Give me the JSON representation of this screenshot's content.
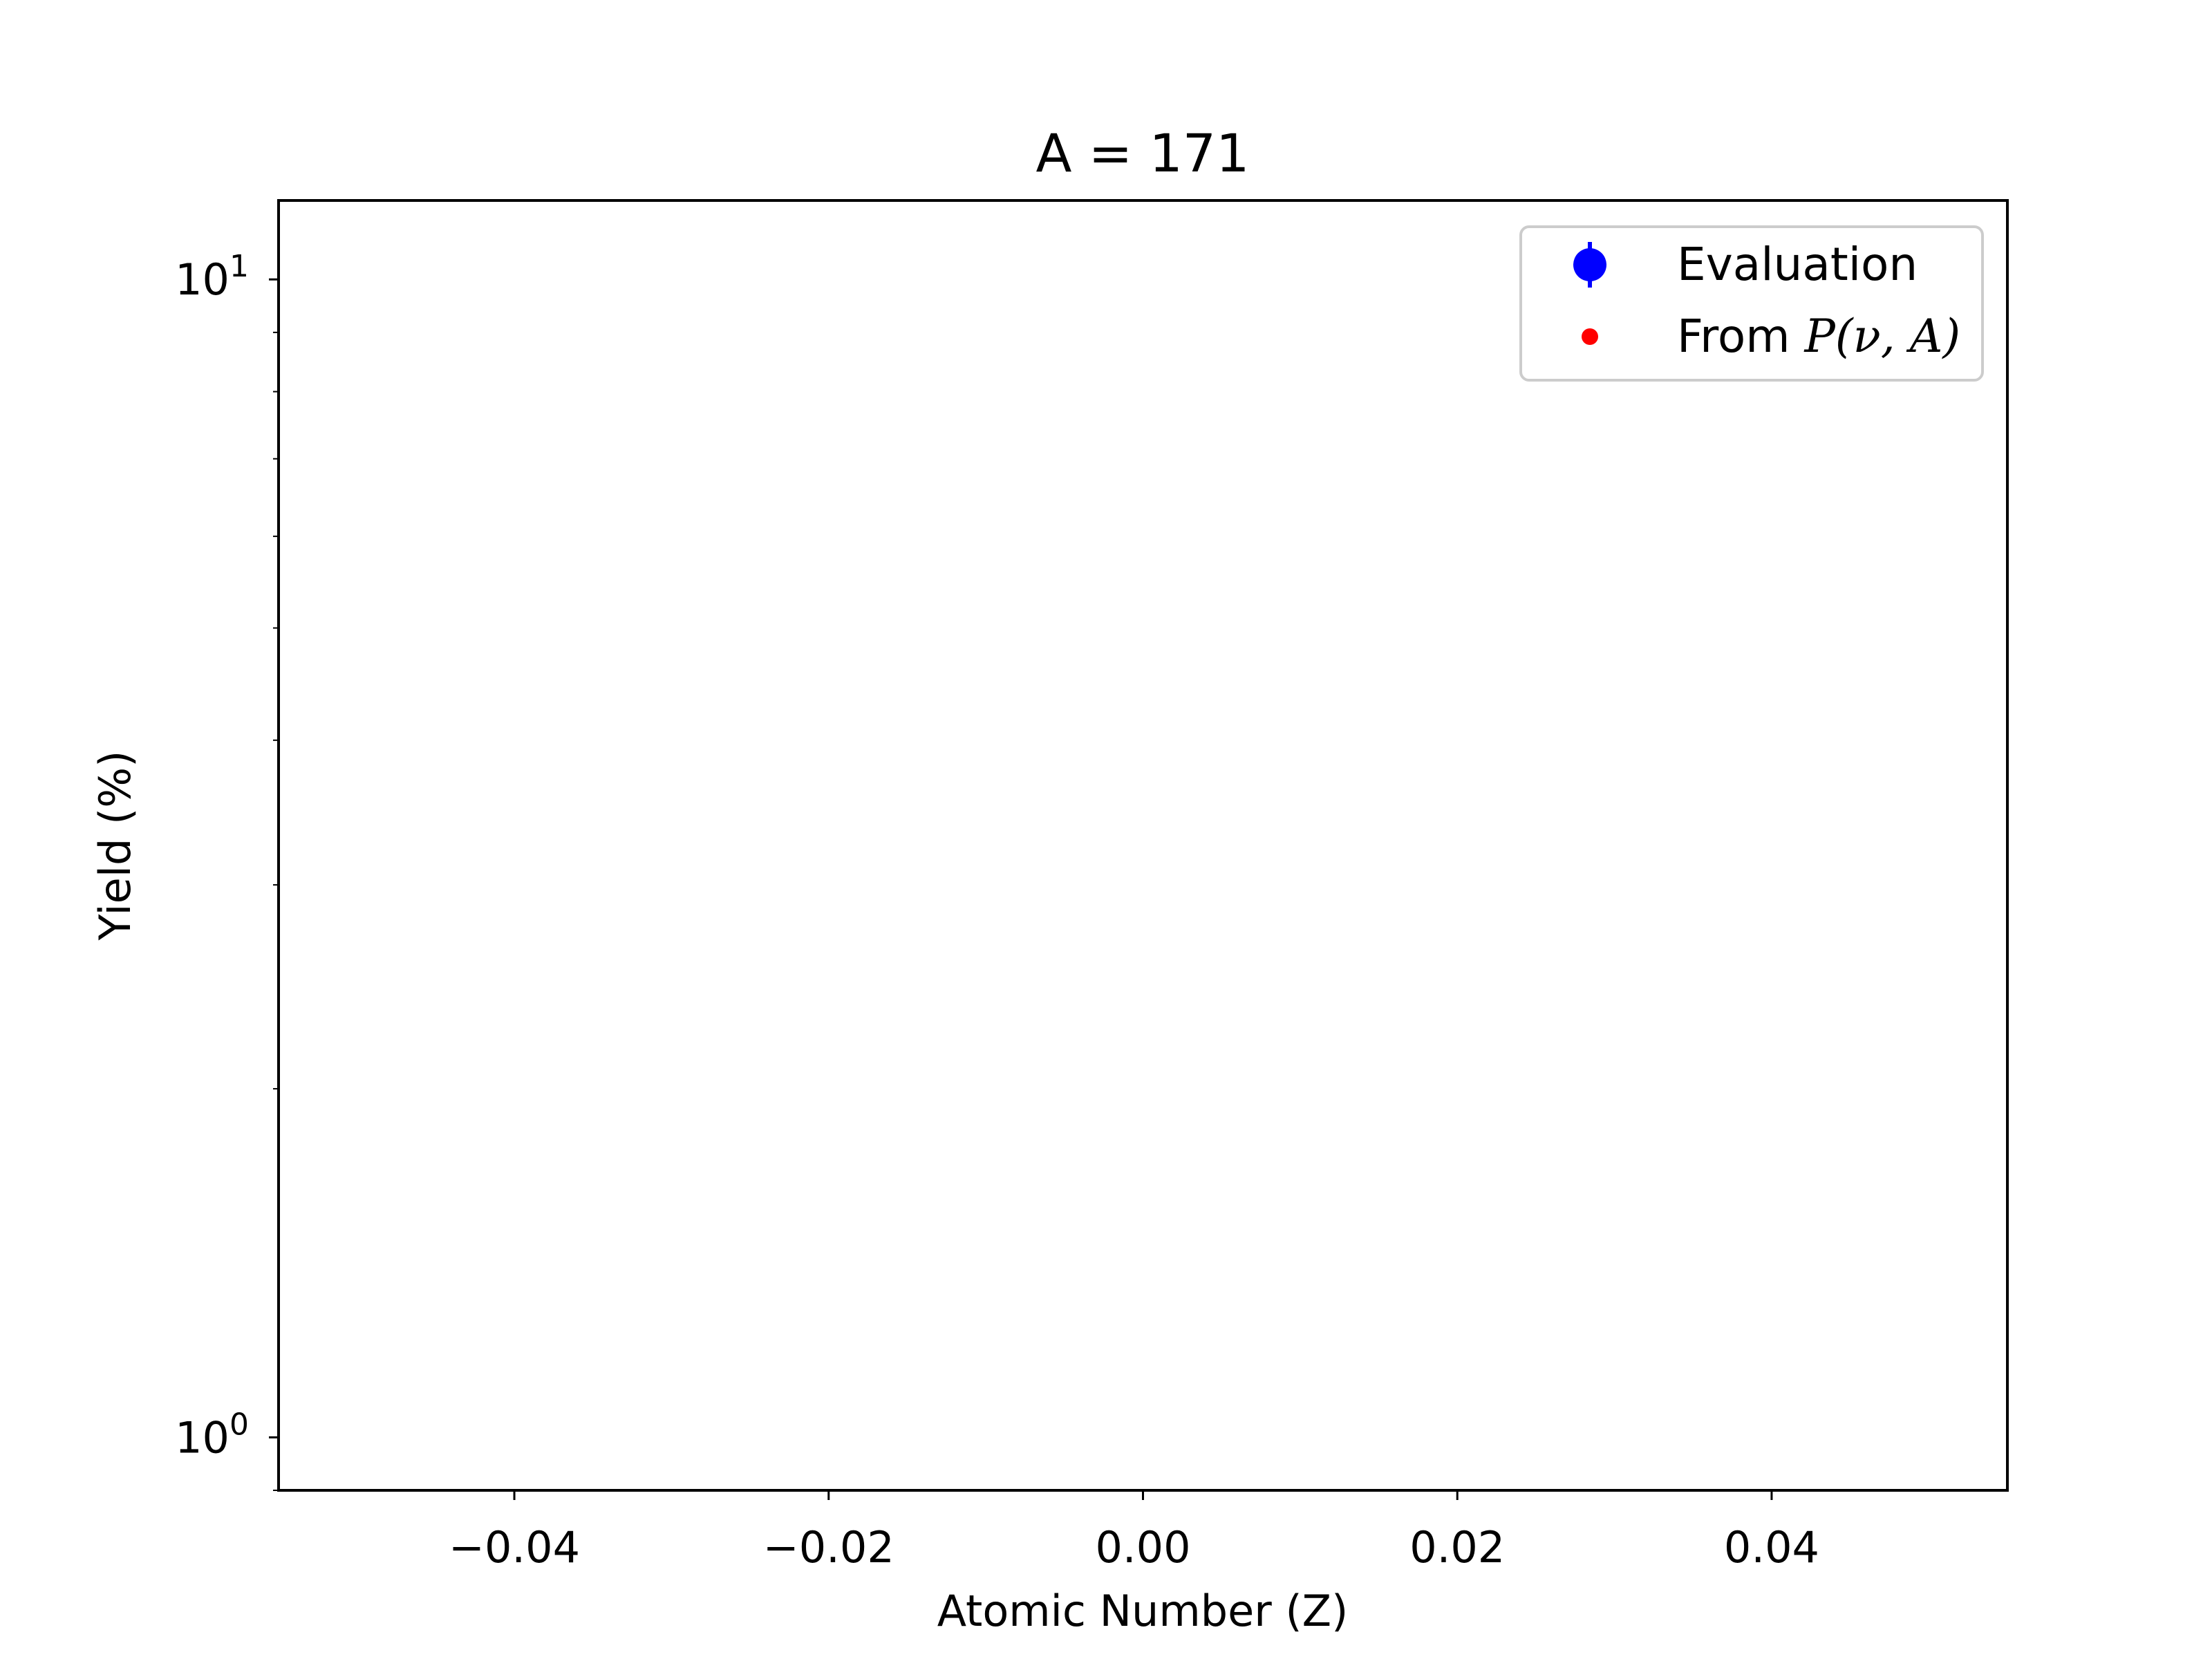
{
  "chart_data": {
    "type": "scatter",
    "title": "A = 171",
    "xlabel": "Atomic Number (Z)",
    "ylabel": "Yield (%)",
    "xlim": [
      -0.055,
      0.055
    ],
    "ylim": [
      0.9,
      11.7
    ],
    "yscale": "log",
    "grid": false,
    "legend_position": "top-right",
    "x_ticks": [
      {
        "value": -0.04,
        "label": "−0.04"
      },
      {
        "value": -0.02,
        "label": "−0.02"
      },
      {
        "value": 0.0,
        "label": "0.00"
      },
      {
        "value": 0.02,
        "label": "0.02"
      },
      {
        "value": 0.04,
        "label": "0.04"
      }
    ],
    "y_major_ticks": [
      {
        "value": 1,
        "base": "10",
        "exp": "0"
      },
      {
        "value": 10,
        "base": "10",
        "exp": "1"
      }
    ],
    "y_minor_ticks": [
      0.9,
      2,
      3,
      4,
      5,
      6,
      7,
      8,
      9
    ],
    "series": [
      {
        "name": "Evaluation",
        "marker": "circle-errorbar",
        "color": "#0000ff",
        "x": [],
        "y": [],
        "yerr": []
      },
      {
        "name": "From P(ν, A)",
        "marker": "dot",
        "color": "#ff0000",
        "x": [],
        "y": []
      }
    ],
    "legend": {
      "evaluation_label": "Evaluation",
      "from_prefix": "From ",
      "from_math": "P(ν, A)"
    }
  }
}
